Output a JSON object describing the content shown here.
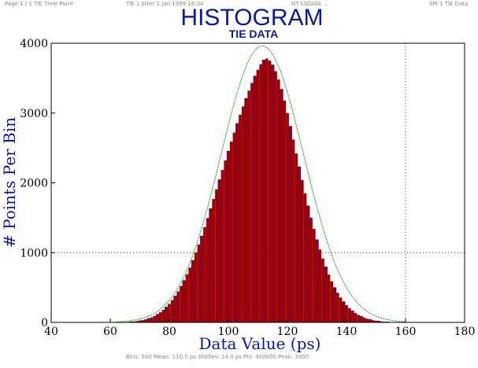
{
  "header": {
    "left": "Page 1 / 1 TIE  Time Point",
    "center": "TIE 1 Jitter 1 Jan 1999 16:34",
    "center_right": "NT.S3DATA  ...",
    "right": "SPI 1  TIE Data"
  },
  "footer": {
    "text": "Bins: 500  Mean: 110.0 ps  StdDev: 14.0 ps  Pts: 400000  Peak: 3950"
  },
  "page_num": "1 of 1",
  "colors": {
    "bar": "#a30000",
    "bar_edge": "#1a1aa0",
    "fit": "#1e9a1e",
    "title": "#0b18a8"
  },
  "chart_data": {
    "type": "bar",
    "title": "HISTOGRAM",
    "subtitle": "TIE DATA",
    "xlabel": "Data Value (ps)",
    "ylabel": "# Points Per Bin",
    "xlim": [
      40,
      180
    ],
    "ylim": [
      0,
      4000
    ],
    "x_ticks": [
      "40",
      "60",
      "80",
      "100",
      "120",
      "140",
      "160",
      "180"
    ],
    "y_ticks": [
      "0",
      "1000",
      "2000",
      "3000",
      "4000"
    ],
    "grid": "dotted reference lines at y=1000 and x=160",
    "bin_width": 1,
    "fit_curve": {
      "mean": 111.5,
      "stddev": 14.0,
      "peak": 3960
    },
    "bins": [
      {
        "x": 64,
        "y": 3
      },
      {
        "x": 65,
        "y": 5
      },
      {
        "x": 66,
        "y": 7
      },
      {
        "x": 67,
        "y": 10
      },
      {
        "x": 68,
        "y": 13
      },
      {
        "x": 69,
        "y": 18
      },
      {
        "x": 70,
        "y": 24
      },
      {
        "x": 71,
        "y": 32
      },
      {
        "x": 72,
        "y": 43
      },
      {
        "x": 73,
        "y": 56
      },
      {
        "x": 74,
        "y": 72
      },
      {
        "x": 75,
        "y": 92
      },
      {
        "x": 76,
        "y": 116
      },
      {
        "x": 77,
        "y": 145
      },
      {
        "x": 78,
        "y": 180
      },
      {
        "x": 79,
        "y": 220
      },
      {
        "x": 80,
        "y": 265
      },
      {
        "x": 81,
        "y": 318
      },
      {
        "x": 82,
        "y": 378
      },
      {
        "x": 83,
        "y": 444
      },
      {
        "x": 84,
        "y": 520
      },
      {
        "x": 85,
        "y": 600
      },
      {
        "x": 86,
        "y": 688
      },
      {
        "x": 87,
        "y": 785
      },
      {
        "x": 88,
        "y": 888
      },
      {
        "x": 89,
        "y": 1000
      },
      {
        "x": 90,
        "y": 1115
      },
      {
        "x": 91,
        "y": 1238
      },
      {
        "x": 92,
        "y": 1365
      },
      {
        "x": 93,
        "y": 1495
      },
      {
        "x": 94,
        "y": 1630
      },
      {
        "x": 95,
        "y": 1768
      },
      {
        "x": 96,
        "y": 1905
      },
      {
        "x": 97,
        "y": 2045
      },
      {
        "x": 98,
        "y": 2185
      },
      {
        "x": 99,
        "y": 2320
      },
      {
        "x": 100,
        "y": 2455
      },
      {
        "x": 101,
        "y": 2590
      },
      {
        "x": 102,
        "y": 2720
      },
      {
        "x": 103,
        "y": 2850
      },
      {
        "x": 104,
        "y": 2975
      },
      {
        "x": 105,
        "y": 3095
      },
      {
        "x": 106,
        "y": 3210
      },
      {
        "x": 107,
        "y": 3320
      },
      {
        "x": 108,
        "y": 3430
      },
      {
        "x": 109,
        "y": 3530
      },
      {
        "x": 110,
        "y": 3620
      },
      {
        "x": 111,
        "y": 3700
      },
      {
        "x": 112,
        "y": 3760
      },
      {
        "x": 113,
        "y": 3780
      },
      {
        "x": 114,
        "y": 3750
      },
      {
        "x": 115,
        "y": 3690
      },
      {
        "x": 116,
        "y": 3600
      },
      {
        "x": 117,
        "y": 3480
      },
      {
        "x": 118,
        "y": 3340
      },
      {
        "x": 119,
        "y": 3180
      },
      {
        "x": 120,
        "y": 3000
      },
      {
        "x": 121,
        "y": 2810
      },
      {
        "x": 122,
        "y": 2620
      },
      {
        "x": 123,
        "y": 2420
      },
      {
        "x": 124,
        "y": 2230
      },
      {
        "x": 125,
        "y": 2040
      },
      {
        "x": 126,
        "y": 1850
      },
      {
        "x": 127,
        "y": 1670
      },
      {
        "x": 128,
        "y": 1500
      },
      {
        "x": 129,
        "y": 1340
      },
      {
        "x": 130,
        "y": 1185
      },
      {
        "x": 131,
        "y": 1045
      },
      {
        "x": 132,
        "y": 915
      },
      {
        "x": 133,
        "y": 795
      },
      {
        "x": 134,
        "y": 685
      },
      {
        "x": 135,
        "y": 588
      },
      {
        "x": 136,
        "y": 500
      },
      {
        "x": 137,
        "y": 424
      },
      {
        "x": 138,
        "y": 356
      },
      {
        "x": 139,
        "y": 297
      },
      {
        "x": 140,
        "y": 246
      },
      {
        "x": 141,
        "y": 202
      },
      {
        "x": 142,
        "y": 165
      },
      {
        "x": 143,
        "y": 134
      },
      {
        "x": 144,
        "y": 108
      },
      {
        "x": 145,
        "y": 86
      },
      {
        "x": 146,
        "y": 68
      },
      {
        "x": 147,
        "y": 53
      },
      {
        "x": 148,
        "y": 41
      },
      {
        "x": 149,
        "y": 31
      },
      {
        "x": 150,
        "y": 24
      },
      {
        "x": 151,
        "y": 18
      },
      {
        "x": 152,
        "y": 13
      },
      {
        "x": 153,
        "y": 10
      },
      {
        "x": 154,
        "y": 7
      },
      {
        "x": 155,
        "y": 5
      },
      {
        "x": 156,
        "y": 4
      },
      {
        "x": 157,
        "y": 3
      },
      {
        "x": 158,
        "y": 2
      }
    ]
  }
}
